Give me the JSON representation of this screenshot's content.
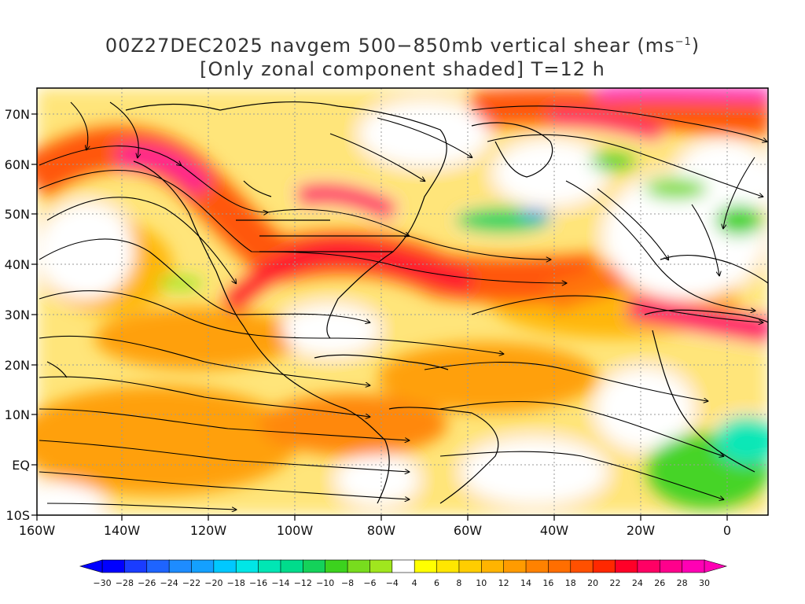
{
  "header": {
    "title_prefix": "00Z27DEC2025 navgem 500−850mb vertical shear (ms",
    "title_sup": "−1",
    "title_suffix": ")",
    "subtitle": "[Only zonal component shaded] T=12 h"
  },
  "map": {
    "x_ticks": [
      "160W",
      "140W",
      "120W",
      "100W",
      "80W",
      "60W",
      "40W",
      "20W",
      "0"
    ],
    "y_ticks": [
      "70N",
      "60N",
      "50N",
      "40N",
      "30N",
      "20N",
      "10N",
      "EQ",
      "10S"
    ],
    "lon_range": [
      -160,
      10
    ],
    "lat_range": [
      -10,
      75
    ]
  },
  "colorbar": {
    "labels": [
      "−30",
      "−28",
      "−26",
      "−24",
      "−22",
      "−20",
      "−18",
      "−16",
      "−14",
      "−12",
      "−10",
      "−8",
      "−6",
      "−4",
      "4",
      "6",
      "8",
      "10",
      "12",
      "14",
      "16",
      "18",
      "20",
      "22",
      "24",
      "26",
      "28",
      "30"
    ],
    "colors": [
      "#0000ff",
      "#1a3cff",
      "#1e64ff",
      "#1e8cff",
      "#14a0ff",
      "#00c8ff",
      "#00e6e6",
      "#00e6b4",
      "#00dc8c",
      "#14d25a",
      "#3cd21e",
      "#78dc1e",
      "#a0e61e",
      "#ffffff",
      "#ffff00",
      "#ffe600",
      "#ffcd00",
      "#ffb400",
      "#ff9b00",
      "#ff8200",
      "#ff6e00",
      "#ff5000",
      "#ff2800",
      "#ff0028",
      "#ff0064",
      "#ff008c",
      "#ff00b4"
    ]
  },
  "colors": {
    "background": "#ffffff",
    "coast": "#000000"
  }
}
